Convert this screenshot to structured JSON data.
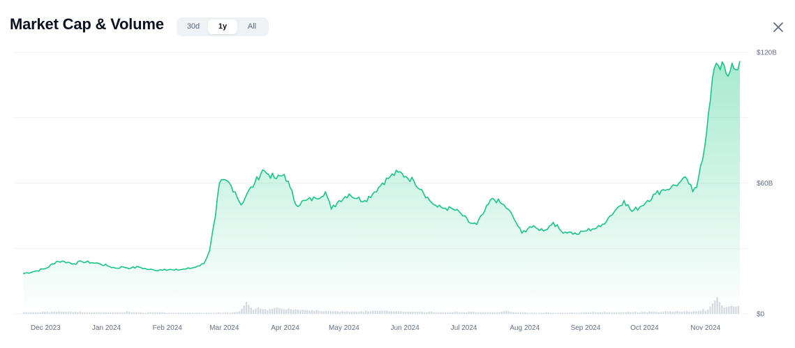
{
  "header": {
    "title": "Market Cap & Volume",
    "ranges": [
      "30d",
      "1y",
      "All"
    ],
    "active_range": "1y",
    "close_icon": "close-icon"
  },
  "colors": {
    "line": "#16c784",
    "area_top": "#16c784",
    "volume": "#d6dbe1",
    "grid": "#eff2f5"
  },
  "chart_data": {
    "type": "area",
    "x_tick_labels": [
      "Dec 2023",
      "Jan 2024",
      "Feb 2024",
      "Mar 2024",
      "Apr 2024",
      "May 2024",
      "Jun 2024",
      "Jul 2024",
      "Aug 2024",
      "Sep 2024",
      "Oct 2024",
      "Nov 2024"
    ],
    "y_tick_labels": [
      "$120B",
      "$60B",
      "$0"
    ],
    "ylim": [
      0,
      120
    ],
    "y_unit": "B USD",
    "grid": true,
    "series": [
      {
        "kind": "market_cap_line",
        "x_start": "2023-11-27",
        "x_end": "2024-11-26",
        "points": [
          [
            "2023-11-27",
            18.5
          ],
          [
            "2023-12-03",
            19.5
          ],
          [
            "2023-12-09",
            21
          ],
          [
            "2023-12-14",
            24
          ],
          [
            "2023-12-18",
            24
          ],
          [
            "2023-12-23",
            23
          ],
          [
            "2023-12-27",
            24
          ],
          [
            "2024-01-01",
            23.5
          ],
          [
            "2024-01-05",
            23
          ],
          [
            "2024-01-09",
            22
          ],
          [
            "2024-01-13",
            21
          ],
          [
            "2024-01-17",
            21.5
          ],
          [
            "2024-01-21",
            21
          ],
          [
            "2024-01-25",
            21.5
          ],
          [
            "2024-01-29",
            20.5
          ],
          [
            "2024-02-02",
            20
          ],
          [
            "2024-02-07",
            20.5
          ],
          [
            "2024-02-12",
            20
          ],
          [
            "2024-02-17",
            20.5
          ],
          [
            "2024-02-21",
            21
          ],
          [
            "2024-02-24",
            22
          ],
          [
            "2024-02-27",
            23
          ],
          [
            "2024-03-01",
            29
          ],
          [
            "2024-03-04",
            45
          ],
          [
            "2024-03-06",
            60
          ],
          [
            "2024-03-10",
            61
          ],
          [
            "2024-03-14",
            56
          ],
          [
            "2024-03-17",
            50
          ],
          [
            "2024-03-20",
            55
          ],
          [
            "2024-03-24",
            60
          ],
          [
            "2024-03-28",
            66
          ],
          [
            "2024-03-31",
            64
          ],
          [
            "2024-04-04",
            62
          ],
          [
            "2024-04-08",
            64
          ],
          [
            "2024-04-11",
            58
          ],
          [
            "2024-04-14",
            50
          ],
          [
            "2024-04-19",
            52
          ],
          [
            "2024-04-24",
            53
          ],
          [
            "2024-04-29",
            56
          ],
          [
            "2024-05-02",
            48
          ],
          [
            "2024-05-06",
            52
          ],
          [
            "2024-05-11",
            55
          ],
          [
            "2024-05-15",
            53
          ],
          [
            "2024-05-19",
            52
          ],
          [
            "2024-05-24",
            56
          ],
          [
            "2024-05-28",
            60
          ],
          [
            "2024-06-01",
            63
          ],
          [
            "2024-06-05",
            65
          ],
          [
            "2024-06-09",
            63
          ],
          [
            "2024-06-13",
            61
          ],
          [
            "2024-06-17",
            57
          ],
          [
            "2024-06-21",
            52
          ],
          [
            "2024-06-25",
            49
          ],
          [
            "2024-06-29",
            48.5
          ],
          [
            "2024-07-03",
            48
          ],
          [
            "2024-07-07",
            46
          ],
          [
            "2024-07-11",
            42
          ],
          [
            "2024-07-15",
            41
          ],
          [
            "2024-07-19",
            47
          ],
          [
            "2024-07-23",
            53
          ],
          [
            "2024-07-27",
            51
          ],
          [
            "2024-07-31",
            48
          ],
          [
            "2024-08-04",
            42
          ],
          [
            "2024-08-07",
            37
          ],
          [
            "2024-08-11",
            40
          ],
          [
            "2024-08-15",
            39
          ],
          [
            "2024-08-19",
            38.5
          ],
          [
            "2024-08-23",
            42
          ],
          [
            "2024-08-27",
            38
          ],
          [
            "2024-08-31",
            37.5
          ],
          [
            "2024-09-04",
            36.5
          ],
          [
            "2024-09-08",
            38
          ],
          [
            "2024-09-12",
            39
          ],
          [
            "2024-09-16",
            40
          ],
          [
            "2024-09-20",
            44
          ],
          [
            "2024-09-24",
            48
          ],
          [
            "2024-09-28",
            52
          ],
          [
            "2024-10-02",
            47
          ],
          [
            "2024-10-06",
            49
          ],
          [
            "2024-10-10",
            52
          ],
          [
            "2024-10-14",
            55
          ],
          [
            "2024-10-18",
            57
          ],
          [
            "2024-10-22",
            58
          ],
          [
            "2024-10-26",
            60
          ],
          [
            "2024-10-30",
            62
          ],
          [
            "2024-11-02",
            56
          ],
          [
            "2024-11-04",
            58
          ],
          [
            "2024-11-06",
            68
          ],
          [
            "2024-11-08",
            76
          ],
          [
            "2024-11-10",
            92
          ],
          [
            "2024-11-12",
            108
          ],
          [
            "2024-11-14",
            115
          ],
          [
            "2024-11-16",
            112
          ],
          [
            "2024-11-18",
            114
          ],
          [
            "2024-11-20",
            109
          ],
          [
            "2024-11-22",
            115
          ],
          [
            "2024-11-24",
            112
          ],
          [
            "2024-11-26",
            116
          ]
        ]
      },
      {
        "kind": "volume_bars",
        "baseline_y_max": 120,
        "volume_relative": [
          0.03,
          0.03,
          0.03,
          0.03,
          0.03,
          0.03,
          0.03,
          0.03,
          0.04,
          0.04,
          0.04,
          0.03,
          0.04,
          0.04,
          0.04,
          0.05,
          0.04,
          0.04,
          0.04,
          0.04,
          0.04,
          0.03,
          0.04,
          0.03,
          0.04,
          0.03,
          0.03,
          0.03,
          0.03,
          0.03,
          0.03,
          0.03,
          0.03,
          0.03,
          0.03,
          0.03,
          0.03,
          0.03,
          0.03,
          0.03,
          0.03,
          0.03,
          0.03,
          0.03,
          0.05,
          0.04,
          0.03,
          0.03,
          0.03,
          0.03,
          0.03,
          0.02,
          0.02,
          0.03,
          0.03,
          0.03,
          0.03,
          0.03,
          0.03,
          0.03,
          0.03,
          0.02,
          0.02,
          0.02,
          0.02,
          0.02,
          0.02,
          0.02,
          0.02,
          0.02,
          0.02,
          0.02,
          0.02,
          0.02,
          0.02,
          0.02,
          0.02,
          0.02,
          0.02,
          0.02,
          0.02,
          0.02,
          0.02,
          0.03,
          0.02,
          0.02,
          0.03,
          0.03,
          0.02,
          0.03,
          0.03,
          0.04,
          0.05,
          0.1,
          0.16,
          0.23,
          0.17,
          0.12,
          0.08,
          0.1,
          0.12,
          0.1,
          0.09,
          0.09,
          0.07,
          0.09,
          0.1,
          0.11,
          0.12,
          0.11,
          0.1,
          0.09,
          0.08,
          0.1,
          0.09,
          0.08,
          0.09,
          0.08,
          0.07,
          0.08,
          0.07,
          0.07,
          0.06,
          0.07,
          0.06,
          0.07,
          0.06,
          0.05,
          0.05,
          0.06,
          0.06,
          0.05,
          0.05,
          0.05,
          0.05,
          0.04,
          0.05,
          0.04,
          0.05,
          0.04,
          0.04,
          0.05,
          0.04,
          0.04,
          0.05,
          0.04,
          0.06,
          0.05,
          0.05,
          0.06,
          0.06,
          0.06,
          0.06,
          0.06,
          0.06,
          0.06,
          0.05,
          0.05,
          0.05,
          0.05,
          0.05,
          0.05,
          0.04,
          0.04,
          0.04,
          0.04,
          0.04,
          0.04,
          0.04,
          0.04,
          0.04,
          0.03,
          0.03,
          0.04,
          0.04,
          0.03,
          0.03,
          0.03,
          0.03,
          0.03,
          0.03,
          0.03,
          0.03,
          0.03,
          0.04,
          0.04,
          0.03,
          0.03,
          0.03,
          0.03,
          0.04,
          0.04,
          0.04,
          0.03,
          0.03,
          0.03,
          0.03,
          0.03,
          0.03,
          0.03,
          0.03,
          0.03,
          0.03,
          0.03,
          0.04,
          0.05,
          0.06,
          0.05,
          0.04,
          0.03,
          0.03,
          0.03,
          0.03,
          0.03,
          0.03,
          0.02,
          0.02,
          0.02,
          0.02,
          0.02,
          0.02,
          0.02,
          0.02,
          0.03,
          0.03,
          0.02,
          0.02,
          0.02,
          0.02,
          0.02,
          0.02,
          0.02,
          0.02,
          0.02,
          0.03,
          0.02,
          0.02,
          0.02,
          0.03,
          0.03,
          0.03,
          0.03,
          0.03,
          0.04,
          0.03,
          0.03,
          0.03,
          0.03,
          0.04,
          0.03,
          0.03,
          0.03,
          0.03,
          0.03,
          0.03,
          0.03,
          0.03,
          0.03,
          0.04,
          0.03,
          0.03,
          0.04,
          0.03,
          0.03,
          0.04,
          0.04,
          0.03,
          0.05,
          0.04,
          0.04,
          0.04,
          0.03,
          0.04,
          0.04,
          0.05,
          0.04,
          0.05,
          0.04,
          0.05,
          0.06,
          0.04,
          0.04,
          0.05,
          0.05,
          0.04,
          0.04,
          0.05,
          0.05,
          0.06,
          0.06,
          0.1,
          0.06,
          0.08,
          0.14,
          0.2,
          0.25,
          0.32,
          0.22,
          0.16,
          0.12,
          0.13,
          0.14,
          0.15,
          0.14,
          0.14,
          0.15
        ]
      }
    ]
  }
}
